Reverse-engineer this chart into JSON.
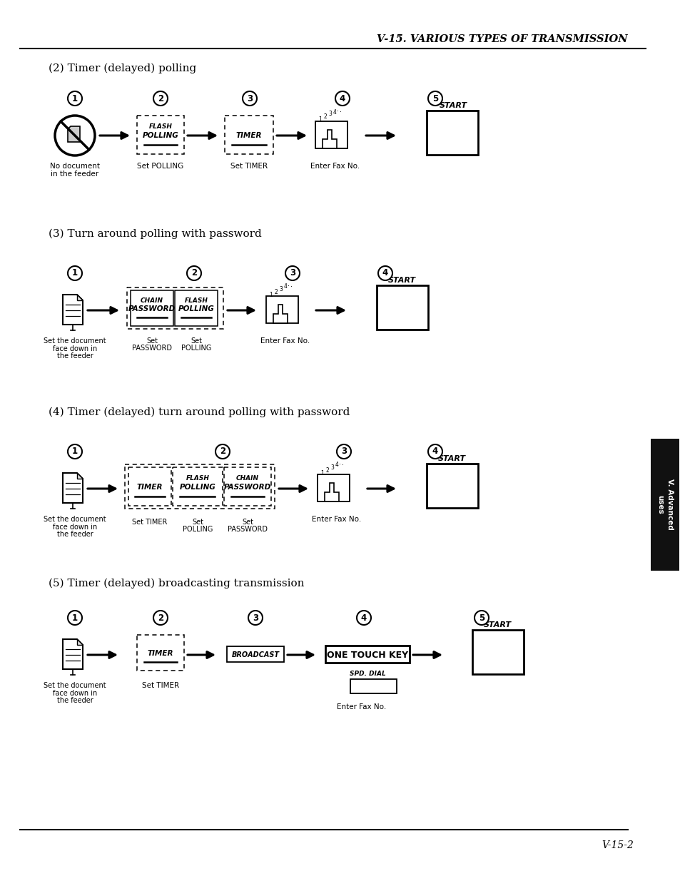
{
  "page_bg": "#ffffff",
  "title": "V-15. VARIOUS TYPES OF TRANSMISSION",
  "page_num": "V-15-2",
  "s2": "(2) Timer (delayed) polling",
  "s3": "(3) Turn around polling with password",
  "s4": "(4) Timer (delayed) turn around polling with password",
  "s5": "(5) Timer (delayed) broadcasting transmission",
  "sidebar_text": "V. Advanced\nuses",
  "sidebar_color": "#111111"
}
